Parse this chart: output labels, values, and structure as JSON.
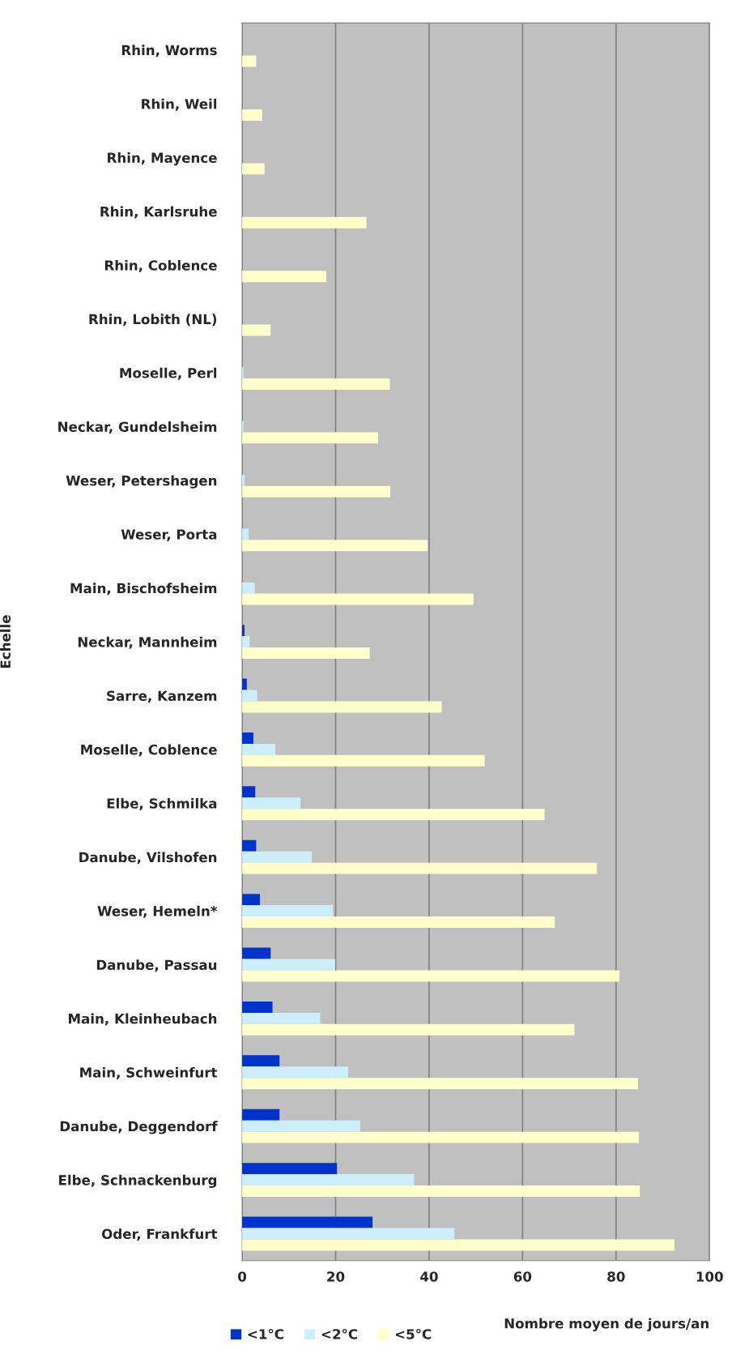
{
  "chart_data": {
    "type": "bar",
    "orientation": "horizontal",
    "xlabel": "Nombre moyen de jours/an",
    "ylabel": "Echelle",
    "categories": [
      "Rhin, Worms",
      "Rhin, Weil",
      "Rhin, Mayence",
      "Rhin, Karlsruhe",
      "Rhin, Coblence",
      "Rhin, Lobith (NL)",
      "Moselle, Perl",
      "Neckar, Gundelsheim",
      "Weser, Petershagen",
      "Weser, Porta",
      "Main, Bischofsheim",
      "Neckar, Mannheim",
      "Sarre, Kanzem",
      "Moselle, Coblence",
      "Elbe, Schmilka",
      "Danube, Vilshofen",
      "Weser, Hemeln*",
      "Danube, Passau",
      "Main, Kleinheubach",
      "Main, Schweinfurt",
      "Danube, Deggendorf",
      "Elbe, Schnackenburg",
      "Oder, Frankfurt"
    ],
    "series": [
      {
        "name": "<1°C",
        "color": "#0033cc",
        "values": [
          0,
          0,
          0,
          0,
          0,
          0,
          0,
          0,
          0,
          0,
          0,
          0.5,
          1.0,
          2.4,
          2.8,
          3.0,
          3.8,
          6.1,
          6.5,
          8.0,
          8.0,
          20.3,
          27.9
        ]
      },
      {
        "name": "<2°C",
        "color": "#cceeff",
        "values": [
          0,
          0,
          0,
          0,
          0,
          null,
          0.3,
          0.3,
          0.5,
          1.4,
          2.7,
          1.6,
          3.2,
          7.1,
          12.5,
          14.9,
          19.4,
          19.9,
          16.7,
          22.7,
          25.3,
          36.8,
          45.4
        ]
      },
      {
        "name": "<5°C",
        "color": "#ffffcc",
        "values": [
          3.0,
          4.3,
          4.8,
          26.6,
          18.0,
          6.1,
          31.6,
          29.1,
          31.7,
          39.7,
          49.5,
          27.3,
          42.7,
          51.9,
          64.7,
          75.9,
          66.9,
          80.7,
          71.1,
          84.7,
          84.9,
          85.1,
          92.5
        ]
      }
    ],
    "xlim": [
      0,
      100
    ],
    "xticks": [
      0,
      20,
      40,
      60,
      80,
      100
    ],
    "grid": "x",
    "legend": "bottom"
  }
}
